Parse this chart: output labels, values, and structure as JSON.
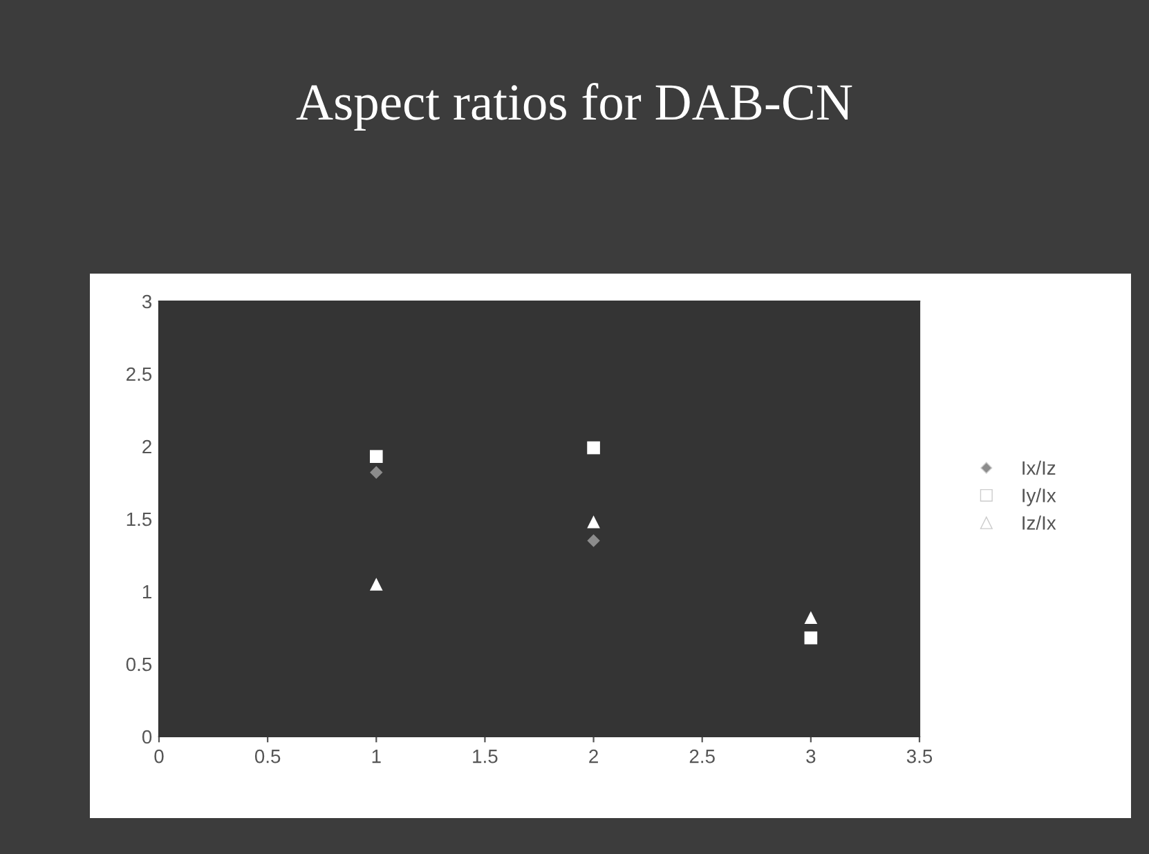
{
  "chart_data": {
    "type": "scatter",
    "title": "Aspect ratios for DAB-CN",
    "x": [
      1,
      2,
      3
    ],
    "series": [
      {
        "name": "Ix/Iz",
        "color": "#8c8c8c",
        "marker": "diamond",
        "values": [
          1.82,
          1.35,
          null
        ]
      },
      {
        "name": "Iy/Ix",
        "color": "#ffffff",
        "marker": "square",
        "values": [
          1.93,
          1.99,
          0.68
        ]
      },
      {
        "name": "Iz/Ix",
        "color": "#ffffff",
        "marker": "triangle",
        "values": [
          1.05,
          1.48,
          0.82
        ]
      }
    ],
    "xlim": [
      0,
      3.5
    ],
    "xticks": [
      0,
      {
        "value": 0.5,
        "label": "0.5"
      },
      1,
      {
        "value": 1.5,
        "label": "1.5"
      },
      2,
      {
        "value": 2.5,
        "label": "2.5"
      },
      3,
      {
        "value": 3.5,
        "label": "3.5"
      }
    ],
    "ylim": [
      0,
      3
    ],
    "yticks": [
      0,
      {
        "value": 0.5,
        "label": "0.5"
      },
      1,
      {
        "value": 1.5,
        "label": "1.5"
      },
      2,
      {
        "value": 2.5,
        "label": "2.5"
      },
      3
    ],
    "grid": false,
    "legend": "right"
  }
}
